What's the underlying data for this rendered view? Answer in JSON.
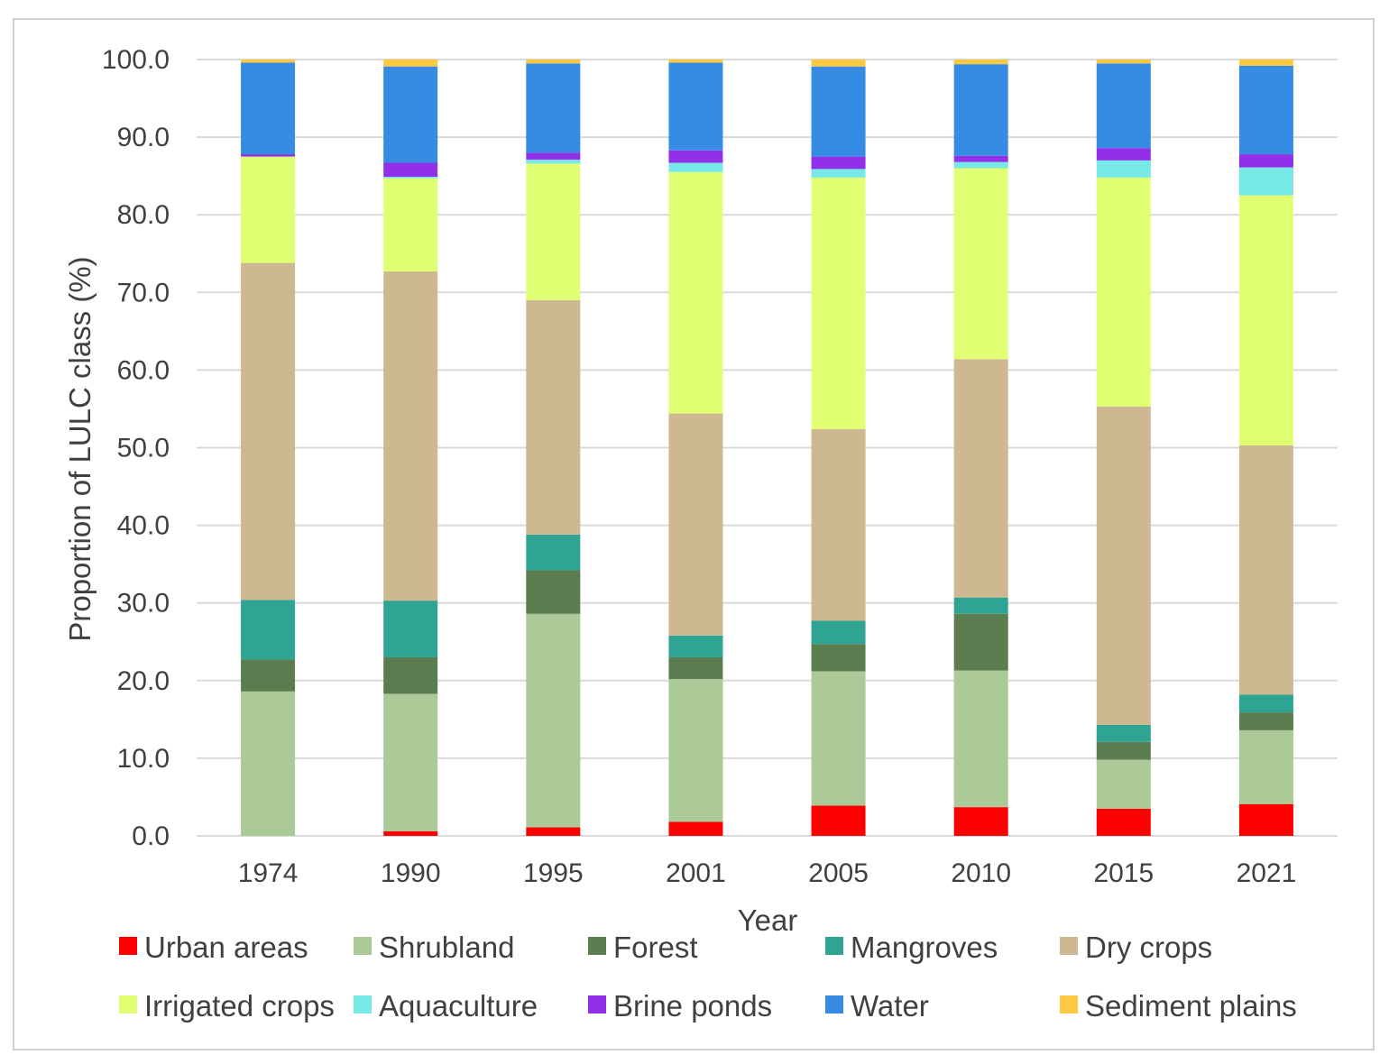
{
  "chart_data": {
    "type": "bar",
    "stacked": true,
    "title": "",
    "xlabel": "Year",
    "ylabel": "Proportion of LULC class (%)",
    "ylim": [
      0,
      100
    ],
    "yticks": [
      "0.0",
      "10.0",
      "20.0",
      "30.0",
      "40.0",
      "50.0",
      "60.0",
      "70.0",
      "80.0",
      "90.0",
      "100.0"
    ],
    "grid": true,
    "legend_position": "bottom",
    "categories": [
      "1974",
      "1990",
      "1995",
      "2001",
      "2005",
      "2010",
      "2015",
      "2021"
    ],
    "series": [
      {
        "name": "Urban areas",
        "color": "#ff0000",
        "values": [
          0.0,
          0.6,
          1.1,
          1.8,
          3.9,
          3.7,
          3.5,
          4.1
        ]
      },
      {
        "name": "Shrubland",
        "color": "#acc998",
        "values": [
          18.6,
          17.7,
          27.5,
          18.4,
          17.3,
          17.6,
          6.3,
          9.5
        ]
      },
      {
        "name": "Forest",
        "color": "#5b7d4f",
        "values": [
          4.1,
          4.7,
          5.6,
          2.8,
          3.5,
          7.3,
          2.3,
          2.3
        ]
      },
      {
        "name": "Mangroves",
        "color": "#2fa492",
        "values": [
          7.7,
          7.3,
          4.6,
          2.8,
          3.0,
          2.1,
          2.2,
          2.3
        ]
      },
      {
        "name": "Dry crops",
        "color": "#cdb891",
        "values": [
          43.4,
          42.4,
          30.2,
          28.6,
          24.7,
          30.7,
          41.0,
          32.1
        ]
      },
      {
        "name": "Irrigated crops",
        "color": "#e0ff73",
        "values": [
          13.7,
          12.0,
          17.6,
          31.1,
          32.4,
          24.6,
          29.5,
          32.2
        ]
      },
      {
        "name": "Aquaculture",
        "color": "#76e8e6",
        "values": [
          0.0,
          0.2,
          0.5,
          1.2,
          1.1,
          0.8,
          2.2,
          3.6
        ]
      },
      {
        "name": "Brine ponds",
        "color": "#9130e8",
        "values": [
          0.3,
          1.8,
          0.9,
          1.6,
          1.6,
          0.8,
          1.6,
          1.7
        ]
      },
      {
        "name": "Water",
        "color": "#368be3",
        "values": [
          11.8,
          12.4,
          11.5,
          11.3,
          11.6,
          11.8,
          10.9,
          11.4
        ]
      },
      {
        "name": "Sediment plains",
        "color": "#fec942",
        "values": [
          0.4,
          0.9,
          0.5,
          0.4,
          0.9,
          0.6,
          0.5,
          0.8
        ]
      }
    ]
  }
}
